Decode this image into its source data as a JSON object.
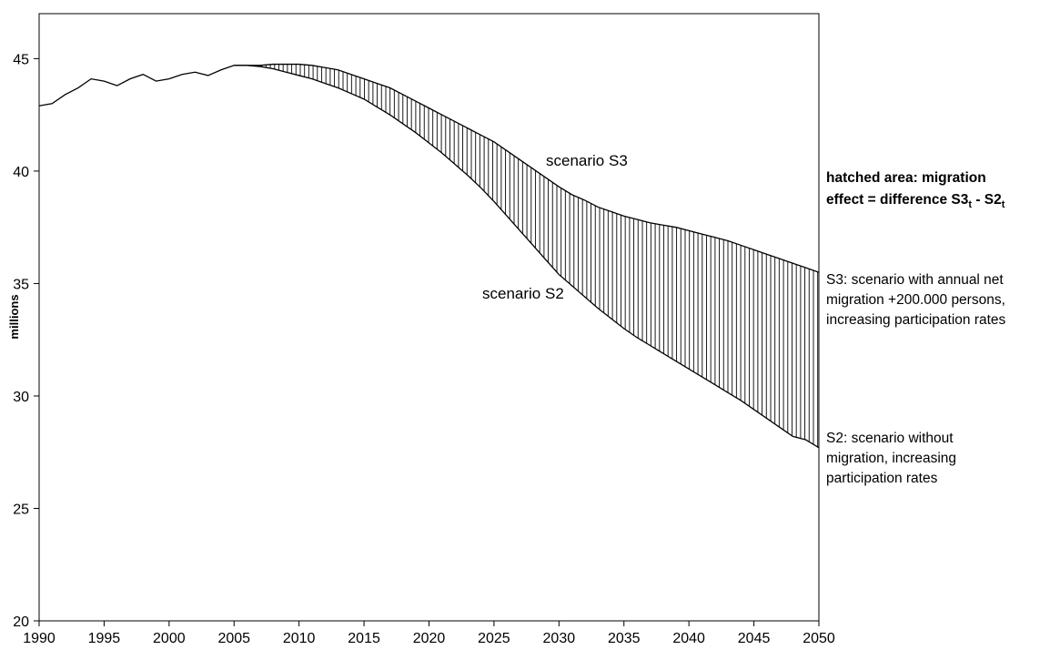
{
  "chart_data": {
    "type": "line",
    "y_label": "millions",
    "x": [
      1990,
      1991,
      1992,
      1993,
      1994,
      1995,
      1996,
      1997,
      1998,
      1999,
      2000,
      2001,
      2002,
      2003,
      2004,
      2005,
      2006,
      2007,
      2008,
      2009,
      2010,
      2011,
      2012,
      2013,
      2014,
      2015,
      2016,
      2017,
      2018,
      2019,
      2020,
      2021,
      2022,
      2023,
      2024,
      2025,
      2026,
      2027,
      2028,
      2029,
      2030,
      2031,
      2032,
      2033,
      2034,
      2035,
      2036,
      2037,
      2038,
      2039,
      2040,
      2041,
      2042,
      2043,
      2044,
      2045,
      2046,
      2047,
      2048,
      2049,
      2050
    ],
    "series": [
      {
        "name": "scenario S3",
        "color": "#000000",
        "values": [
          42.9,
          43.0,
          43.4,
          43.7,
          44.1,
          44.0,
          43.8,
          44.1,
          44.3,
          44.0,
          44.1,
          44.3,
          44.4,
          44.25,
          44.5,
          44.7,
          44.7,
          44.7,
          44.75,
          44.75,
          44.75,
          44.7,
          44.6,
          44.5,
          44.3,
          44.1,
          43.9,
          43.7,
          43.4,
          43.1,
          42.8,
          42.5,
          42.2,
          41.9,
          41.6,
          41.3,
          40.9,
          40.5,
          40.1,
          39.7,
          39.3,
          38.95,
          38.7,
          38.4,
          38.2,
          38.0,
          37.85,
          37.7,
          37.6,
          37.5,
          37.35,
          37.2,
          37.05,
          36.9,
          36.7,
          36.5,
          36.3,
          36.1,
          35.9,
          35.7,
          35.5
        ]
      },
      {
        "name": "scenario S2",
        "color": "#000000",
        "values": [
          null,
          null,
          null,
          null,
          null,
          null,
          null,
          null,
          null,
          null,
          null,
          null,
          null,
          null,
          null,
          44.7,
          44.7,
          44.65,
          44.55,
          44.4,
          44.25,
          44.1,
          43.9,
          43.7,
          43.45,
          43.2,
          42.85,
          42.5,
          42.1,
          41.7,
          41.25,
          40.8,
          40.3,
          39.8,
          39.25,
          38.65,
          38.0,
          37.35,
          36.7,
          36.05,
          35.4,
          34.9,
          34.4,
          33.9,
          33.45,
          33.0,
          32.6,
          32.25,
          31.9,
          31.55,
          31.2,
          30.85,
          30.5,
          30.15,
          29.8,
          29.4,
          29.0,
          28.6,
          28.2,
          28.05,
          27.7
        ]
      }
    ],
    "xlim": [
      1990,
      2050
    ],
    "xticks": [
      1990,
      1995,
      2000,
      2005,
      2010,
      2015,
      2020,
      2025,
      2030,
      2035,
      2040,
      2045,
      2050
    ],
    "ylim": [
      20,
      47
    ],
    "yticks": [
      20,
      25,
      30,
      35,
      40,
      45
    ],
    "hatch_note": {
      "line1": "hatched area: migration",
      "line2": [
        "effect = difference S3",
        "t",
        " - S2",
        "t"
      ]
    },
    "s3_note": [
      "S3: scenario with annual net",
      "migration +200.000 persons,",
      "increasing participation rates"
    ],
    "s2_note": [
      "S2: scenario without",
      "migration, increasing",
      "participation rates"
    ]
  }
}
